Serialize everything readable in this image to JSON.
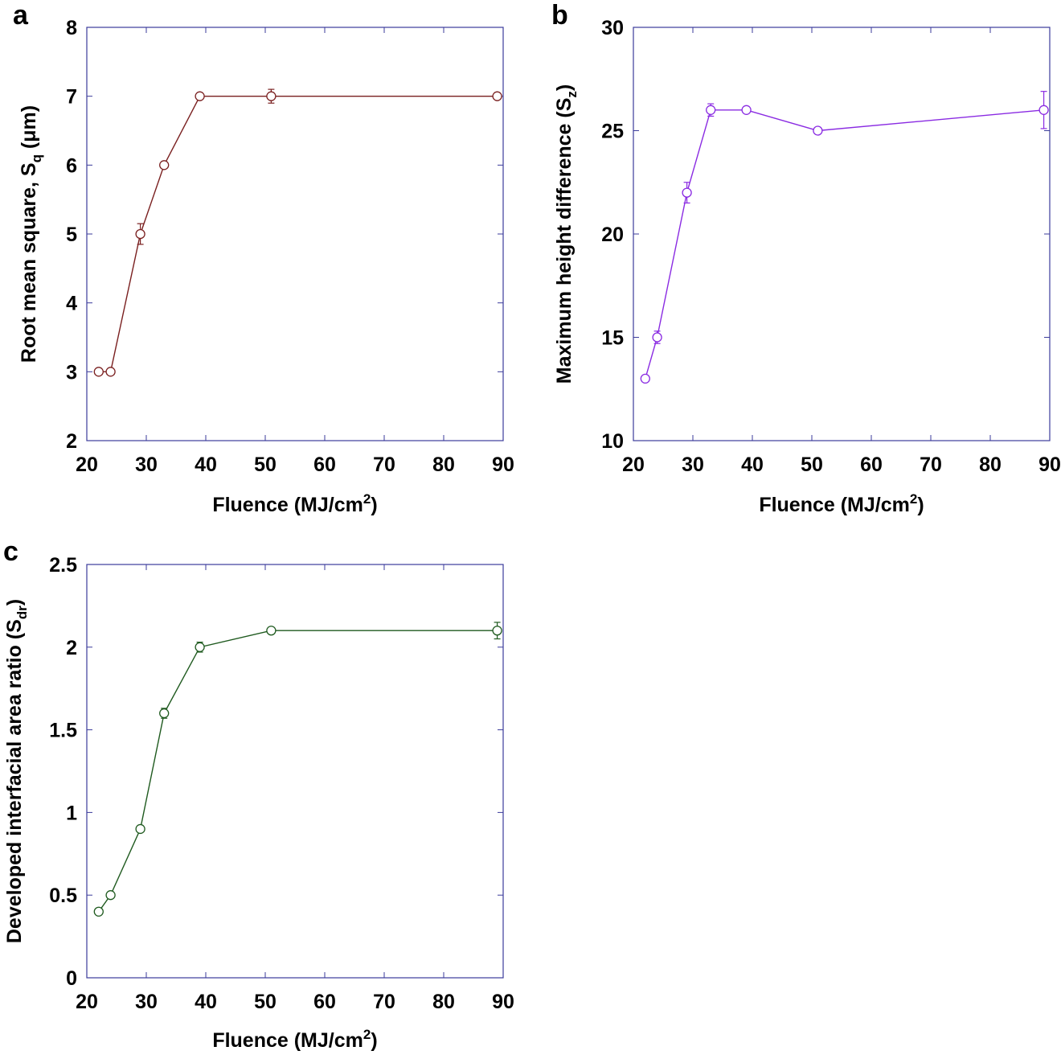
{
  "chart_data": [
    {
      "panel": "a",
      "type": "line",
      "color": "#7a2020",
      "frame_color": "#3b3b9b",
      "xlabel": "Fluence (MJ/cm2)",
      "xlabel_parts": {
        "main": "Fluence (MJ/cm",
        "sup": "2",
        "end": ")"
      },
      "ylabel": "Root mean square, Sq (μm)",
      "ylabel_parts": {
        "main": "Root mean square, S",
        "sub": "q",
        "end": " (μm)"
      },
      "xlim": [
        20,
        90
      ],
      "ylim": [
        2,
        8
      ],
      "xticks": [
        20,
        30,
        40,
        50,
        60,
        70,
        80,
        90
      ],
      "yticks": [
        2,
        3,
        4,
        5,
        6,
        7,
        8
      ],
      "x": [
        22,
        24,
        29,
        33,
        39,
        51,
        89
      ],
      "y": [
        3,
        3,
        5,
        6,
        7,
        7,
        7
      ],
      "err": [
        0,
        0,
        0.15,
        0,
        0,
        0.1,
        0
      ]
    },
    {
      "panel": "b",
      "type": "line",
      "color": "#8a2be2",
      "frame_color": "#3b3b9b",
      "xlabel": "Fluence (MJ/cm2)",
      "xlabel_parts": {
        "main": "Fluence (MJ/cm",
        "sup": "2",
        "end": ")"
      },
      "ylabel": "Maximum height difference (Sz)",
      "ylabel_parts": {
        "main": "Maximum height difference (S",
        "sub": "z",
        "end": ")"
      },
      "xlim": [
        20,
        90
      ],
      "ylim": [
        10,
        30
      ],
      "xticks": [
        20,
        30,
        40,
        50,
        60,
        70,
        80,
        90
      ],
      "yticks": [
        10,
        15,
        20,
        25,
        30
      ],
      "x": [
        22,
        24,
        29,
        33,
        39,
        51,
        89
      ],
      "y": [
        13,
        15,
        22,
        26,
        26,
        25,
        26
      ],
      "err": [
        0,
        0.3,
        0.5,
        0.3,
        0,
        0,
        0.9
      ]
    },
    {
      "panel": "c",
      "type": "line",
      "color": "#1f5a1f",
      "frame_color": "#3b3b9b",
      "xlabel": "Fluence (MJ/cm2)",
      "xlabel_parts": {
        "main": "Fluence (MJ/cm",
        "sup": "2",
        "end": ")"
      },
      "ylabel": "Developed interfacial area ratio (Sdr)",
      "ylabel_parts": {
        "main": "Developed interfacial area ratio (S",
        "sub": "dr",
        "end": ")"
      },
      "xlim": [
        20,
        90
      ],
      "ylim": [
        0,
        2.5
      ],
      "xticks": [
        20,
        30,
        40,
        50,
        60,
        70,
        80,
        90
      ],
      "yticks": [
        0,
        0.5,
        1,
        1.5,
        2,
        2.5
      ],
      "x": [
        22,
        24,
        29,
        33,
        39,
        51,
        89
      ],
      "y": [
        0.4,
        0.5,
        0.9,
        1.6,
        2.0,
        2.1,
        2.1
      ],
      "err": [
        0,
        0,
        0,
        0.03,
        0.03,
        0,
        0.05
      ]
    }
  ]
}
